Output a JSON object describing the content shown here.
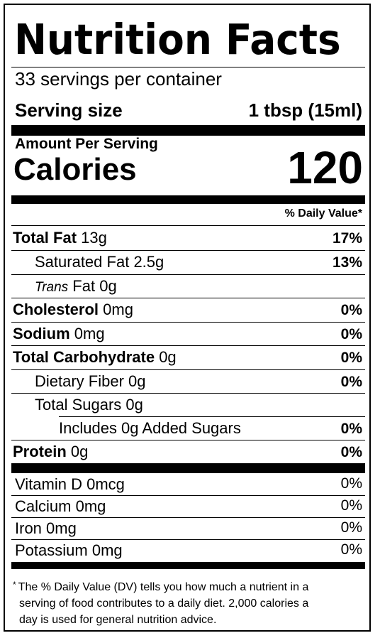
{
  "title": "Nutrition Facts",
  "servings_per_container": "33 servings per container",
  "serving_size": {
    "label": "Serving size",
    "value": "1 tbsp (15ml)"
  },
  "amount_per_serving": "Amount Per Serving",
  "calories": {
    "label": "Calories",
    "value": "120"
  },
  "daily_value_header": "% Daily Value*",
  "nutrients": [
    {
      "name": "Total Fat",
      "amount": "13g",
      "dv": "17%"
    },
    {
      "name": "Saturated Fat",
      "amount": "2.5g",
      "dv": "13%"
    },
    {
      "name": "Trans",
      "suffix": "Fat",
      "amount": "0g",
      "dv": ""
    },
    {
      "name": "Cholesterol",
      "amount": "0mg",
      "dv": "0%"
    },
    {
      "name": "Sodium",
      "amount": "0mg",
      "dv": "0%"
    },
    {
      "name": "Total Carbohydrate",
      "amount": "0g",
      "dv": "0%"
    },
    {
      "name": "Dietary Fiber",
      "amount": "0g",
      "dv": "0%"
    },
    {
      "name": "Total Sugars",
      "amount": "0g",
      "dv": ""
    },
    {
      "name": "Includes 0g Added Sugars",
      "amount": "",
      "dv": "0%"
    },
    {
      "name": "Protein",
      "amount": "0g",
      "dv": "0%"
    }
  ],
  "vitamins": [
    {
      "name": "Vitamin D",
      "amount": "0mcg",
      "dv": "0%"
    },
    {
      "name": "Calcium",
      "amount": "0mg",
      "dv": "0%"
    },
    {
      "name": "Iron",
      "amount": "0mg",
      "dv": "0%"
    },
    {
      "name": "Potassium",
      "amount": "0mg",
      "dv": "0%"
    }
  ],
  "footnote": {
    "star": "*",
    "line1": "The % Daily Value (DV) tells you how much a nutrient in a",
    "line2": "serving of food contributes to a daily diet. 2,000 calories a",
    "line3": "day is used for general nutrition advice."
  }
}
